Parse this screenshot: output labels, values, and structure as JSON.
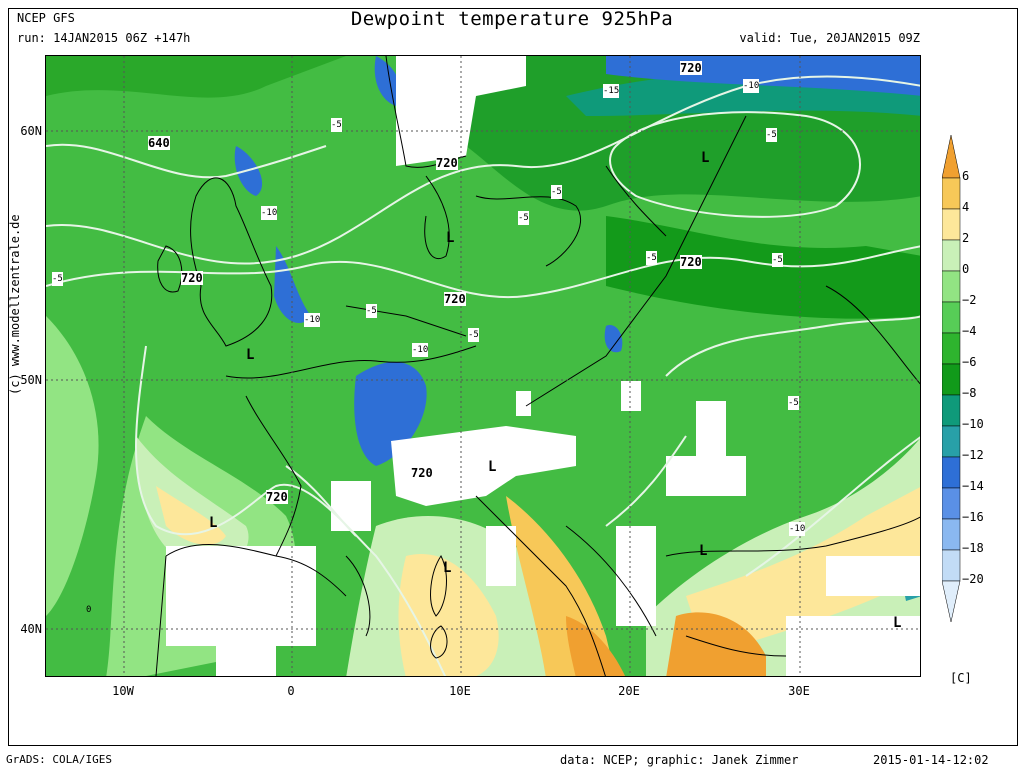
{
  "header": {
    "model": "NCEP GFS",
    "run": "run: 14JAN2015 06Z +147h",
    "title": "Dewpoint temperature 925hPa",
    "valid": "valid: Tue, 20JAN2015 09Z"
  },
  "footer": {
    "software": "GrADS: COLA/IGES",
    "data_credit": "data: NCEP; graphic: Janek Zimmer",
    "timestamp": "2015-01-14-12:02"
  },
  "side_credit": "(c) www.modellzentrale.de",
  "lat_labels": [
    "60N",
    "50N",
    "40N"
  ],
  "lon_labels": [
    "10W",
    "0",
    "10E",
    "20E",
    "30E"
  ],
  "legend": {
    "unit": "[C]",
    "ticks": [
      "6",
      "4",
      "2",
      "0",
      "-2",
      "-4",
      "-6",
      "-8",
      "-10",
      "-12",
      "-14",
      "-16",
      "-18",
      "-20"
    ],
    "colors": [
      "#f0a030",
      "#f7c858",
      "#fde79a",
      "#c9f0b8",
      "#92e483",
      "#57cd57",
      "#2eb42e",
      "#119a1a",
      "#0f9a7a",
      "#28a0a8",
      "#2e6fd6",
      "#5a90e6",
      "#8ab8f0",
      "#c2dcf6",
      "#e0eefb"
    ]
  },
  "contour_labels": [
    "640",
    "720",
    "720",
    "720",
    "720",
    "720",
    "720",
    "720"
  ],
  "dewpoint_labels": [
    "-5",
    "-5",
    "-5",
    "-5",
    "-5",
    "-5",
    "-5",
    "-5",
    "-5",
    "-5",
    "-10",
    "-10",
    "-10",
    "-10",
    "-10",
    "-15",
    "0"
  ],
  "pressure_lows": [
    "L",
    "L",
    "L",
    "L",
    "L",
    "L",
    "L",
    "L"
  ]
}
